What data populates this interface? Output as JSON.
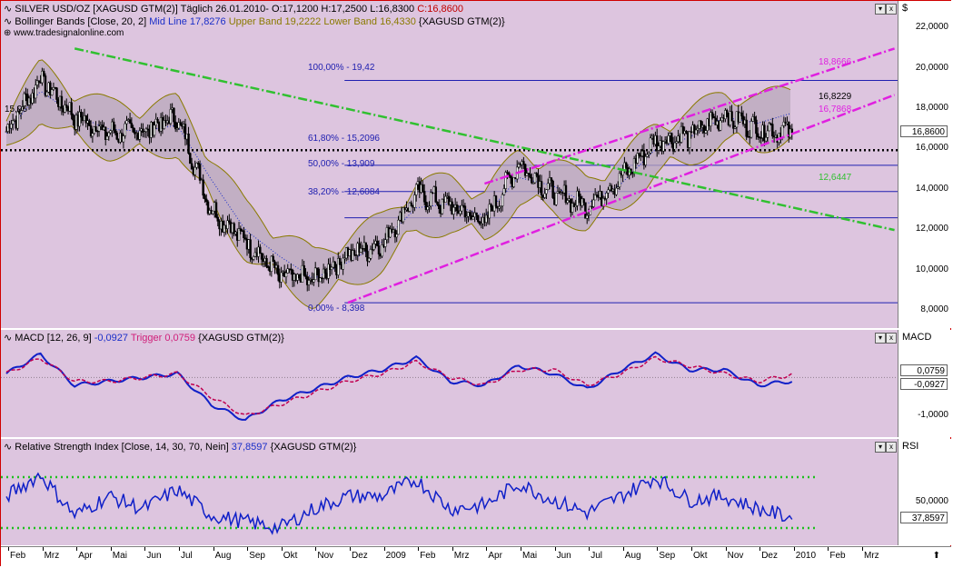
{
  "header": {
    "main": {
      "symbol": "SILVER USD/OZ [XAGUSD GTM(2)]",
      "period": "Täglich",
      "date": "26.01.2010",
      "ohlc": "- O:17,1200 H:17,2500 L:16,8300",
      "close": "C:16,8600"
    },
    "bollinger": {
      "name": "Bollinger Bands [Close, 20, 2]",
      "mid": "Mid Line 17,8276",
      "upper": "Upper Band 19,2222",
      "lower": "Lower Band 16,4330",
      "symbol": "{XAGUSD GTM(2)}"
    },
    "watermark": "www.tradesignalonline.com",
    "macd": {
      "name": "MACD [12, 26, 9]",
      "value": "-0,0927",
      "trigger": "Trigger 0,0759",
      "symbol": "{XAGUSD GTM(2)}"
    },
    "rsi": {
      "name": "Relative Strength Index [Close, 14, 30, 70, Nein]",
      "value": "37,8597",
      "symbol": "{XAGUSD GTM(2)}"
    }
  },
  "panel_titles": {
    "price": "$",
    "macd": "MACD",
    "rsi": "RSI"
  },
  "controls": {
    "menu": "▾",
    "close": "x"
  },
  "annotations": {
    "start_level": "15,96",
    "fib_100": "100,00% - 19,42",
    "fib_618": "61,80% - 15,2096",
    "fib_50": "50,00% - 13,909",
    "fib_382": "38,20% - 12,6084",
    "fib_0": "0,00% - 8,398",
    "upper_band": "18,8666",
    "mid_value": "16,8229",
    "lower_value": "16,7868",
    "green_value": "12,6447"
  },
  "axis_labels": {
    "price": [
      "22,0000",
      "20,0000",
      "18,0000",
      "16,0000",
      "14,0000",
      "12,0000",
      "10,0000",
      "8,0000"
    ],
    "price_last": "16,8600",
    "macd": [
      "0,0759",
      "-0,0927",
      "-1,0000"
    ],
    "rsi": [
      "50,0000"
    ],
    "rsi_last": "37,8597"
  },
  "months": [
    "Feb",
    "Mrz",
    "Apr",
    "Mai",
    "Jun",
    "Jul",
    "Aug",
    "Sep",
    "Okt",
    "Nov",
    "Dez",
    "2009",
    "Feb",
    "Mrz",
    "Apr",
    "Mai",
    "Jun",
    "Jul",
    "Aug",
    "Sep",
    "Okt",
    "Nov",
    "Dez",
    "2010",
    "Feb",
    "Mrz"
  ],
  "colors": {
    "panel_bg": "#ddc5df",
    "price": "#000000",
    "band": "#8a7a00",
    "fib": "#2020b0",
    "support": "#000000",
    "trend_pink": "#e020e0",
    "trend_green": "#30c030",
    "macd": "#1020c8",
    "trigger": "#c00050",
    "rsi": "#1020c8",
    "rsi_levels": "#20c020"
  },
  "chart_data": [
    {
      "type": "line",
      "title": "SILVER USD/OZ [XAGUSD GTM(2)]",
      "ylabel": "$",
      "ylim": [
        7.5,
        23.0
      ],
      "x_months": [
        "Feb 2008",
        "Mrz",
        "Apr",
        "Mai",
        "Jun",
        "Jul",
        "Aug",
        "Sep",
        "Okt",
        "Nov",
        "Dez",
        "2009",
        "Feb",
        "Mrz",
        "Apr",
        "Mai",
        "Jun",
        "Jul",
        "Aug",
        "Sep",
        "Okt",
        "Nov",
        "Dez",
        "2010"
      ],
      "series": [
        {
          "name": "Close",
          "values": [
            16.9,
            19.5,
            17.6,
            16.8,
            16.9,
            17.6,
            13.0,
            11.5,
            9.7,
            9.5,
            10.8,
            11.3,
            13.8,
            13.2,
            12.4,
            15.3,
            13.8,
            13.2,
            14.6,
            16.4,
            16.7,
            17.7,
            17.0,
            16.9
          ]
        },
        {
          "name": "Mid Line",
          "values": [
            16.8,
            18.9,
            17.7,
            17.0,
            16.9,
            17.2,
            14.5,
            12.0,
            10.7,
            9.6,
            10.4,
            11.4,
            13.1,
            13.3,
            12.7,
            14.6,
            14.2,
            13.3,
            14.3,
            16.0,
            16.6,
            17.6,
            17.3,
            17.8
          ]
        }
      ],
      "bollinger_last": {
        "mid": 17.8276,
        "upper": 19.2222,
        "lower": 16.433
      },
      "fibonacci": [
        {
          "label": "100,00%",
          "value": 19.42
        },
        {
          "label": "61,80%",
          "value": 15.2096
        },
        {
          "label": "50,00%",
          "value": 13.909
        },
        {
          "label": "38,20%",
          "value": 12.6084
        },
        {
          "label": "0,00%",
          "value": 8.398
        }
      ],
      "support_level": 15.96,
      "trendlines": [
        {
          "color": "trend_pink",
          "from_month": 10,
          "from_value": 8.4,
          "to_month": 26,
          "to_value": 18.7
        },
        {
          "color": "trend_pink",
          "from_month": 14,
          "from_value": 14.3,
          "to_month": 26,
          "to_value": 21.0
        },
        {
          "color": "trend_green",
          "from_month": 2,
          "from_value": 21.0,
          "to_month": 26,
          "to_value": 12.0
        }
      ]
    },
    {
      "type": "line",
      "title": "MACD [12, 26, 9]",
      "ylim": [
        -1.4,
        0.9
      ],
      "series": [
        {
          "name": "MACD",
          "values": [
            0.1,
            0.6,
            -0.2,
            -0.1,
            0.0,
            0.1,
            -0.7,
            -1.1,
            -0.6,
            -0.3,
            0.0,
            0.2,
            0.5,
            -0.1,
            -0.2,
            0.3,
            0.1,
            -0.3,
            0.2,
            0.6,
            0.2,
            0.2,
            -0.2,
            -0.0927
          ]
        },
        {
          "name": "Trigger",
          "values": [
            0.1,
            0.5,
            -0.1,
            -0.1,
            0.0,
            0.1,
            -0.5,
            -1.0,
            -0.7,
            -0.4,
            -0.1,
            0.1,
            0.4,
            0.0,
            -0.2,
            0.2,
            0.2,
            -0.2,
            0.1,
            0.5,
            0.3,
            0.1,
            -0.1,
            0.0759
          ]
        }
      ]
    },
    {
      "type": "line",
      "title": "Relative Strength Index [Close, 14, 30, 70, Nein]",
      "ylim": [
        20,
        90
      ],
      "levels": [
        30,
        70
      ],
      "series": [
        {
          "name": "RSI",
          "values": [
            55,
            72,
            40,
            55,
            45,
            60,
            40,
            35,
            30,
            45,
            55,
            55,
            68,
            45,
            48,
            65,
            52,
            42,
            55,
            70,
            52,
            55,
            45,
            37.8597
          ]
        }
      ]
    }
  ]
}
